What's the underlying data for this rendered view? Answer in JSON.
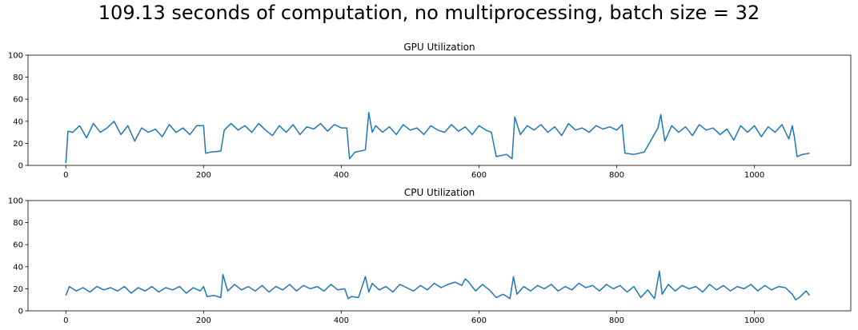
{
  "figure": {
    "title": "109.13 seconds of computation, no multiprocessing, batch size = 32"
  },
  "colors": {
    "series": "#1f77b4",
    "axis": "#000000",
    "background": "#ffffff"
  },
  "chart_data": [
    {
      "type": "line",
      "title": "GPU Utilization",
      "xlabel": "",
      "ylabel": "",
      "xlim": [
        -55,
        1140
      ],
      "ylim": [
        0,
        100
      ],
      "xticks": [
        0,
        200,
        400,
        600,
        800,
        1000
      ],
      "yticks": [
        0,
        20,
        40,
        60,
        80,
        100
      ],
      "grid": false,
      "legend": "none",
      "series": [
        {
          "x": [
            0,
            3,
            10,
            20,
            30,
            40,
            50,
            60,
            70,
            80,
            90,
            100,
            110,
            120,
            130,
            140,
            150,
            160,
            170,
            180,
            190,
            200,
            203,
            210,
            225,
            230,
            240,
            250,
            260,
            270,
            280,
            290,
            300,
            310,
            320,
            330,
            340,
            350,
            360,
            370,
            380,
            390,
            400,
            408,
            412,
            420,
            435,
            440,
            445,
            450,
            460,
            470,
            480,
            490,
            500,
            510,
            520,
            530,
            540,
            550,
            560,
            570,
            580,
            590,
            600,
            610,
            618,
            625,
            640,
            648,
            652,
            660,
            670,
            680,
            690,
            700,
            710,
            720,
            730,
            740,
            750,
            760,
            770,
            780,
            790,
            800,
            808,
            812,
            825,
            840,
            860,
            864,
            870,
            880,
            890,
            900,
            910,
            920,
            930,
            940,
            950,
            960,
            970,
            980,
            990,
            1000,
            1010,
            1020,
            1030,
            1040,
            1050,
            1055,
            1058,
            1062,
            1070,
            1080
          ],
          "y": [
            2,
            31,
            30,
            36,
            25,
            38,
            30,
            34,
            40,
            28,
            36,
            22,
            34,
            30,
            33,
            26,
            37,
            30,
            34,
            28,
            36,
            36,
            11,
            12,
            13,
            32,
            38,
            32,
            36,
            30,
            38,
            32,
            27,
            36,
            30,
            37,
            28,
            35,
            33,
            38,
            31,
            37,
            34,
            34,
            6,
            12,
            14,
            48,
            30,
            36,
            30,
            35,
            28,
            37,
            32,
            34,
            28,
            36,
            32,
            30,
            37,
            31,
            35,
            28,
            36,
            32,
            30,
            8,
            10,
            6,
            44,
            28,
            36,
            32,
            37,
            30,
            35,
            27,
            38,
            32,
            34,
            30,
            36,
            33,
            35,
            32,
            37,
            11,
            10,
            12,
            34,
            46,
            22,
            36,
            30,
            35,
            27,
            37,
            32,
            34,
            28,
            33,
            23,
            36,
            30,
            36,
            26,
            35,
            30,
            37,
            24,
            36,
            26,
            8,
            10,
            11
          ]
        }
      ]
    },
    {
      "type": "line",
      "title": "CPU Utilization",
      "xlabel": "",
      "ylabel": "",
      "xlim": [
        -55,
        1140
      ],
      "ylim": [
        0,
        100
      ],
      "xticks": [
        0,
        200,
        400,
        600,
        800,
        1000
      ],
      "yticks": [
        0,
        20,
        40,
        60,
        80,
        100
      ],
      "grid": false,
      "legend": "none",
      "series": [
        {
          "x": [
            0,
            5,
            15,
            25,
            35,
            45,
            55,
            65,
            75,
            85,
            95,
            105,
            115,
            125,
            135,
            145,
            155,
            165,
            175,
            185,
            195,
            200,
            205,
            215,
            225,
            228,
            235,
            245,
            255,
            265,
            275,
            285,
            295,
            305,
            315,
            325,
            335,
            345,
            355,
            365,
            375,
            385,
            395,
            405,
            410,
            415,
            425,
            435,
            440,
            445,
            455,
            465,
            475,
            485,
            495,
            505,
            515,
            525,
            535,
            545,
            555,
            565,
            575,
            580,
            585,
            595,
            605,
            615,
            625,
            635,
            645,
            650,
            655,
            665,
            675,
            685,
            695,
            705,
            715,
            725,
            735,
            745,
            755,
            765,
            775,
            785,
            795,
            805,
            815,
            825,
            835,
            845,
            855,
            862,
            866,
            875,
            885,
            895,
            905,
            915,
            925,
            935,
            945,
            955,
            965,
            975,
            985,
            995,
            1005,
            1015,
            1025,
            1035,
            1045,
            1055,
            1060,
            1065,
            1075,
            1080
          ],
          "y": [
            14,
            22,
            18,
            21,
            17,
            22,
            19,
            21,
            18,
            22,
            16,
            21,
            18,
            22,
            17,
            21,
            19,
            22,
            16,
            21,
            18,
            22,
            13,
            14,
            12,
            33,
            18,
            24,
            19,
            22,
            18,
            23,
            17,
            22,
            19,
            24,
            18,
            23,
            20,
            22,
            18,
            24,
            19,
            20,
            11,
            13,
            12,
            31,
            17,
            25,
            19,
            22,
            17,
            24,
            21,
            18,
            23,
            19,
            25,
            21,
            24,
            26,
            23,
            29,
            26,
            18,
            24,
            19,
            12,
            15,
            11,
            31,
            15,
            22,
            18,
            23,
            20,
            24,
            18,
            22,
            19,
            25,
            21,
            23,
            18,
            24,
            20,
            23,
            17,
            22,
            12,
            19,
            11,
            36,
            15,
            24,
            18,
            23,
            20,
            22,
            17,
            24,
            19,
            23,
            18,
            22,
            20,
            24,
            18,
            23,
            19,
            22,
            21,
            15,
            10,
            12,
            18,
            14
          ]
        }
      ]
    }
  ]
}
